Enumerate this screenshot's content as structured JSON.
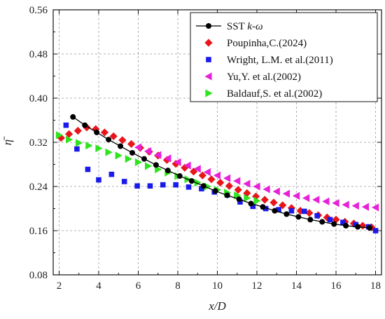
{
  "chart_data": {
    "type": "scatter",
    "xlabel": "x/D",
    "ylabel": "η̄",
    "xlim": [
      1.7,
      18.3
    ],
    "ylim": [
      0.08,
      0.56
    ],
    "xticks": [
      2,
      4,
      6,
      8,
      10,
      12,
      14,
      16,
      18
    ],
    "yticks": [
      0.08,
      0.16,
      0.24,
      0.32,
      0.4,
      0.48,
      0.56
    ],
    "xtick_labels": [
      "2",
      "4",
      "6",
      "8",
      "10",
      "12",
      "14",
      "16",
      "18"
    ],
    "ytick_labels": [
      "0.08",
      "0.16",
      "0.24",
      "0.32",
      "0.40",
      "0.48",
      "0.56"
    ],
    "grid": true,
    "legend_position": "top-right",
    "series": [
      {
        "name": "SST k-ω",
        "legend_plain": "SST ",
        "legend_italic": "k-ω",
        "marker": "circle",
        "line": true,
        "color": "#000000",
        "x": [
          2.7,
          3.3,
          3.9,
          4.5,
          5.1,
          5.7,
          6.3,
          6.9,
          7.5,
          8.1,
          8.7,
          9.3,
          9.9,
          10.5,
          11.1,
          11.7,
          12.3,
          12.9,
          13.5,
          14.1,
          14.7,
          15.3,
          15.9,
          16.5,
          17.1,
          17.7
        ],
        "y": [
          0.366,
          0.351,
          0.338,
          0.325,
          0.313,
          0.301,
          0.29,
          0.279,
          0.269,
          0.259,
          0.25,
          0.241,
          0.232,
          0.224,
          0.217,
          0.209,
          0.203,
          0.196,
          0.19,
          0.185,
          0.18,
          0.176,
          0.172,
          0.169,
          0.167,
          0.165
        ]
      },
      {
        "name": "Poupinha,C.(2024)",
        "marker": "diamond",
        "line": false,
        "color": "#e8161b",
        "x": [
          2.1,
          2.5,
          2.95,
          3.4,
          3.85,
          4.3,
          4.75,
          5.2,
          5.65,
          6.1,
          6.55,
          7.0,
          7.45,
          7.9,
          8.35,
          8.8,
          9.25,
          9.7,
          10.15,
          10.6,
          11.05,
          11.5,
          11.95,
          12.4,
          12.85,
          13.3,
          13.75,
          14.2,
          14.65,
          15.1,
          15.55,
          16.0,
          16.45,
          16.9,
          17.35,
          17.8
        ],
        "y": [
          0.328,
          0.335,
          0.341,
          0.347,
          0.344,
          0.338,
          0.331,
          0.324,
          0.317,
          0.31,
          0.303,
          0.296,
          0.288,
          0.281,
          0.274,
          0.267,
          0.26,
          0.253,
          0.247,
          0.241,
          0.234,
          0.228,
          0.222,
          0.216,
          0.211,
          0.206,
          0.201,
          0.196,
          0.192,
          0.188,
          0.184,
          0.18,
          0.176,
          0.173,
          0.169,
          0.166
        ]
      },
      {
        "name": "Wright, L.M. et al.(2011)",
        "marker": "square",
        "line": false,
        "color": "#1a1aeb",
        "x": [
          2.35,
          2.9,
          3.45,
          4.0,
          4.65,
          5.3,
          5.95,
          6.6,
          7.25,
          7.9,
          8.55,
          9.2,
          9.85,
          10.5,
          11.15,
          11.8,
          12.45,
          13.1,
          13.75,
          14.4,
          15.05,
          15.7,
          16.35,
          17.0,
          17.65,
          18.0
        ],
        "y": [
          0.351,
          0.308,
          0.271,
          0.252,
          0.262,
          0.249,
          0.241,
          0.241,
          0.243,
          0.243,
          0.239,
          0.236,
          0.23,
          0.225,
          0.212,
          0.204,
          0.2,
          0.198,
          0.196,
          0.195,
          0.187,
          0.18,
          0.175,
          0.171,
          0.167,
          0.16
        ]
      },
      {
        "name": "Yu,Y. et al.(2002)",
        "marker": "triangle-left",
        "line": false,
        "color": "#e820d8",
        "x": [
          6.0,
          6.5,
          7.0,
          7.5,
          8.0,
          8.5,
          9.0,
          9.5,
          10.0,
          10.5,
          11.0,
          11.5,
          12.0,
          12.5,
          13.0,
          13.5,
          14.0,
          14.5,
          15.0,
          15.5,
          16.0,
          16.5,
          17.0,
          17.5,
          18.0
        ],
        "y": [
          0.311,
          0.304,
          0.297,
          0.291,
          0.284,
          0.278,
          0.272,
          0.266,
          0.26,
          0.255,
          0.25,
          0.245,
          0.24,
          0.235,
          0.231,
          0.227,
          0.223,
          0.219,
          0.216,
          0.213,
          0.21,
          0.207,
          0.205,
          0.203,
          0.202
        ]
      },
      {
        "name": "Baldauf,S. et al.(2002)",
        "marker": "triangle-right",
        "line": false,
        "color": "#2ee41d",
        "x": [
          2.0,
          2.5,
          3.0,
          3.5,
          4.0,
          4.5,
          5.0,
          5.5,
          6.0,
          6.5,
          7.0,
          7.5,
          8.0,
          8.5,
          9.0,
          9.5,
          10.0,
          10.5,
          11.0,
          11.5,
          12.0
        ],
        "y": [
          0.333,
          0.325,
          0.319,
          0.314,
          0.309,
          0.302,
          0.296,
          0.29,
          0.284,
          0.277,
          0.271,
          0.265,
          0.259,
          0.253,
          0.247,
          0.24,
          0.234,
          0.229,
          0.224,
          0.219,
          0.214
        ]
      }
    ]
  }
}
